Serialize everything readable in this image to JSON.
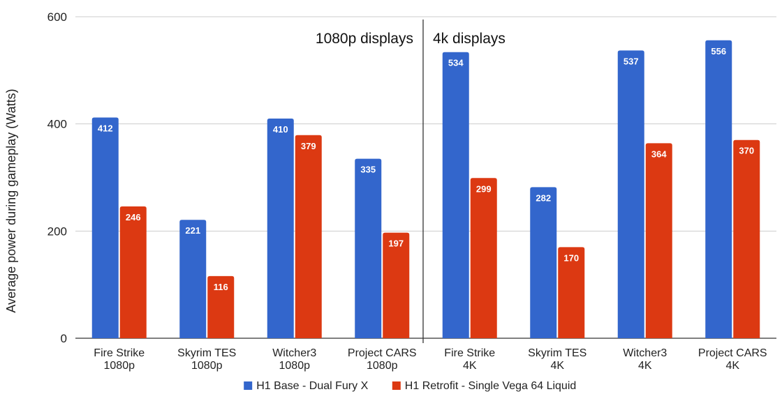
{
  "chart_data": {
    "type": "bar",
    "title": "",
    "xlabel": "",
    "ylabel": "Average power during gameplay (Watts)",
    "ylim": [
      0,
      600
    ],
    "yticks": [
      0,
      200,
      400,
      600
    ],
    "grid": true,
    "legend_position": "bottom",
    "categories": [
      [
        "Fire Strike",
        "1080p"
      ],
      [
        "Skyrim TES",
        "1080p"
      ],
      [
        "Witcher3",
        "1080p"
      ],
      [
        "Project CARS",
        "1080p"
      ],
      [
        "Fire Strike",
        "4K"
      ],
      [
        "Skyrim TES",
        "4K"
      ],
      [
        "Witcher3",
        "4K"
      ],
      [
        "Project CARS",
        "4K"
      ]
    ],
    "series": [
      {
        "name": "H1 Base - Dual Fury X",
        "color": "#3366cc",
        "values": [
          412,
          221,
          410,
          335,
          534,
          282,
          537,
          556
        ]
      },
      {
        "name": "H1 Retrofit - Single Vega 64 Liquid",
        "color": "#dc3912",
        "values": [
          246,
          116,
          379,
          197,
          299,
          170,
          364,
          370
        ]
      }
    ],
    "annotations": {
      "left_label": "1080p displays",
      "right_label": "4k displays",
      "divider_between_categories": [
        3,
        4
      ]
    }
  }
}
